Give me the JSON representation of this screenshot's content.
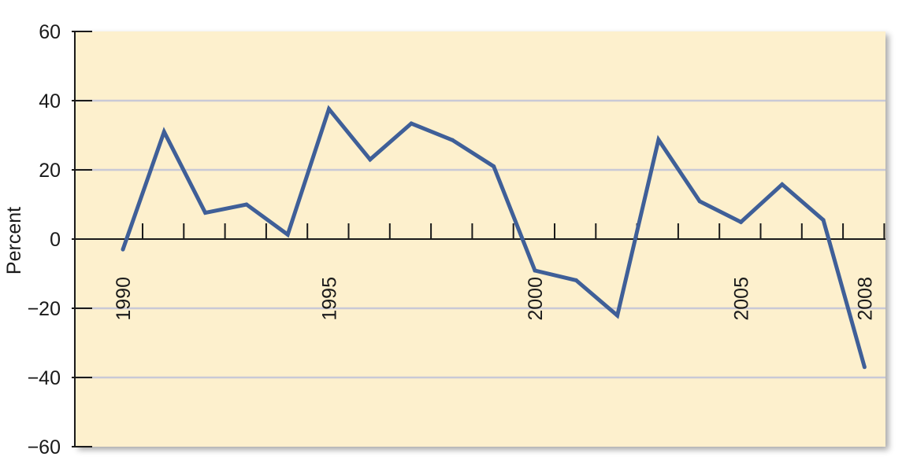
{
  "chart_data": {
    "type": "line",
    "title": "",
    "xlabel": "",
    "ylabel": "Percent",
    "x": [
      1990,
      1991,
      1992,
      1993,
      1994,
      1995,
      1996,
      1997,
      1998,
      1999,
      2000,
      2001,
      2002,
      2003,
      2004,
      2005,
      2006,
      2007,
      2008
    ],
    "series": [
      {
        "values": [
          -3,
          31,
          7.6,
          10,
          1.3,
          37.6,
          23,
          33.4,
          28.6,
          21,
          -9.1,
          -11.9,
          -22.1,
          28.7,
          10.9,
          4.9,
          15.8,
          5.5,
          -37
        ]
      }
    ],
    "xlim": [
      1990,
      2009
    ],
    "ylim": [
      -60,
      60
    ],
    "yticks": [
      60,
      40,
      20,
      0,
      -20,
      -40,
      -60
    ],
    "ytick_labels": [
      "60",
      "40",
      "20",
      "0",
      "−20",
      "−40",
      "−60"
    ],
    "xtick_labels": [
      {
        "x": 1990,
        "label": "1990"
      },
      {
        "x": 1995,
        "label": "1995"
      },
      {
        "x": 2000,
        "label": "2000"
      },
      {
        "x": 2005,
        "label": "2005"
      },
      {
        "x": 2008,
        "label": "2008"
      }
    ],
    "grid": true,
    "colors": {
      "plot_background": "#fdf0cd",
      "line": "#3f5f98",
      "grid": "#c9c9d6",
      "axis": "#1a1a1a"
    }
  }
}
